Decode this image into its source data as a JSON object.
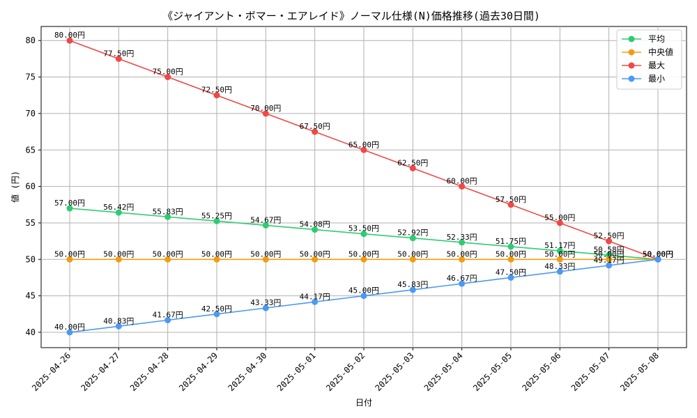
{
  "chart_data": {
    "type": "line",
    "title": "《ジャイアント・ボマー・エアレイド》ノーマル仕様(N)価格推移(過去30日間)",
    "xlabel": "日付",
    "ylabel": "値 (円)",
    "ylim": [
      38,
      82
    ],
    "yticks": [
      40,
      45,
      50,
      55,
      60,
      65,
      70,
      75,
      80
    ],
    "grid": true,
    "legend_position": "top-right",
    "value_suffix": "円",
    "categories": [
      "2025-04-26",
      "2025-04-27",
      "2025-04-28",
      "2025-04-29",
      "2025-04-30",
      "2025-05-01",
      "2025-05-02",
      "2025-05-03",
      "2025-05-04",
      "2025-05-05",
      "2025-05-06",
      "2025-05-07",
      "2025-05-08"
    ],
    "series": [
      {
        "name": "平均",
        "color": "#2ecc71",
        "values": [
          57.0,
          56.42,
          55.83,
          55.25,
          54.67,
          54.08,
          53.5,
          52.92,
          52.33,
          51.75,
          51.17,
          50.58,
          50.0
        ]
      },
      {
        "name": "中央値",
        "color": "#f39c12",
        "values": [
          50.0,
          50.0,
          50.0,
          50.0,
          50.0,
          50.0,
          50.0,
          50.0,
          50.0,
          50.0,
          50.0,
          50.0,
          50.0
        ]
      },
      {
        "name": "最大",
        "color": "#f04848",
        "values": [
          80.0,
          77.5,
          75.0,
          72.5,
          70.0,
          67.5,
          65.0,
          62.5,
          60.0,
          57.5,
          55.0,
          52.5,
          50.0
        ]
      },
      {
        "name": "最小",
        "color": "#4a9af5",
        "values": [
          40.0,
          40.83,
          41.67,
          42.5,
          43.33,
          44.17,
          45.0,
          45.83,
          46.67,
          47.5,
          48.33,
          49.17,
          50.0
        ]
      }
    ]
  }
}
